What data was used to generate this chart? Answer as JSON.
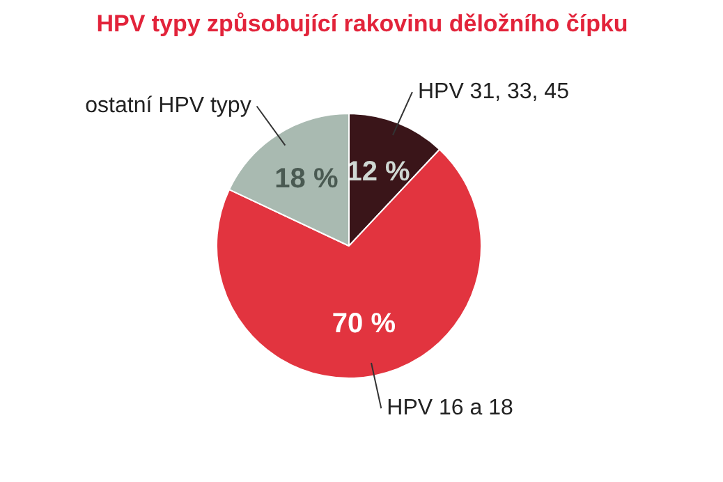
{
  "chart_data": {
    "type": "pie",
    "title": "HPV typy způsobující rakovinu děložního čípku",
    "categories": [
      "HPV 31, 33, 45",
      "HPV 16 a 18",
      "ostatní HPV typy"
    ],
    "values": [
      12,
      70,
      18
    ],
    "colors": [
      "#3a1519",
      "#e2343f",
      "#a9bab1"
    ],
    "value_labels": [
      "12 %",
      "70 %",
      "18 %"
    ]
  }
}
